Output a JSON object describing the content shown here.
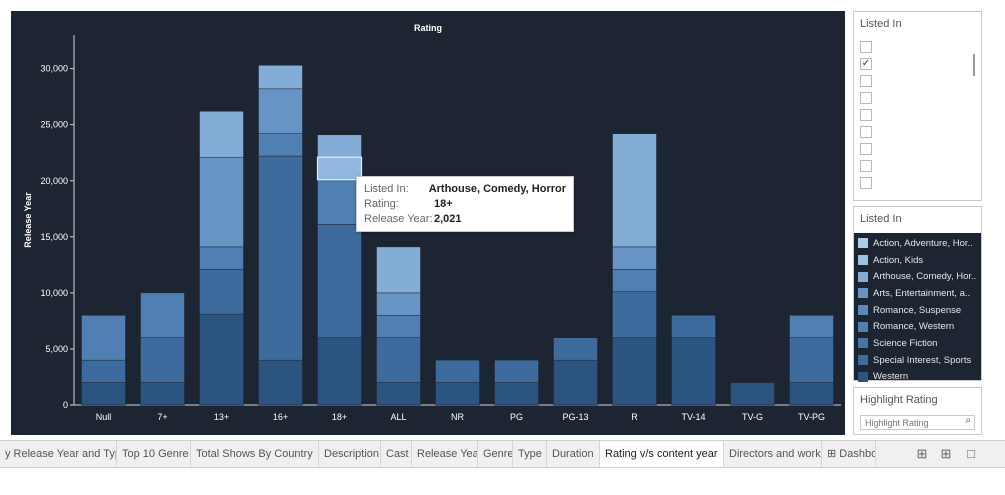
{
  "chart_data": {
    "type": "bar",
    "stacked": true,
    "title": "Rating",
    "xlabel": "",
    "ylabel": "Release Year",
    "ylim": [
      0,
      33000
    ],
    "yticks": [
      0,
      5000,
      10000,
      15000,
      20000,
      25000,
      30000
    ],
    "ytick_labels": [
      "0",
      "5,000",
      "10,000",
      "15,000",
      "20,000",
      "25,000",
      "30,000"
    ],
    "categories": [
      "Null",
      "7+",
      "13+",
      "16+",
      "18+",
      "ALL",
      "NR",
      "PG",
      "PG-13",
      "R",
      "TV-14",
      "TV-G",
      "TV-PG"
    ],
    "segments": [
      [
        2000,
        2000,
        4000
      ],
      [
        2000,
        4000,
        4000
      ],
      [
        8100,
        4000,
        2000,
        8000,
        4100
      ],
      [
        4000,
        18200,
        2000,
        4000,
        2100
      ],
      [
        6000,
        10100,
        4000,
        2000,
        2000
      ],
      [
        2000,
        4000,
        2000,
        2000,
        4100
      ],
      [
        2000,
        2000
      ],
      [
        2000,
        2000
      ],
      [
        4000,
        2000
      ],
      [
        6000,
        4100,
        2000,
        2000,
        10100
      ],
      [
        6000,
        2000
      ],
      [
        2000
      ],
      [
        2000,
        4000,
        2000
      ]
    ],
    "colors": [
      "#2b5480",
      "#3d6b9e",
      "#4f7fb3",
      "#6794c4",
      "#83acd6",
      "#a9cde9"
    ],
    "legend_position": "right"
  },
  "filter_panel": {
    "title": "Listed In",
    "checked": [
      false,
      true,
      false,
      false,
      false,
      false,
      false,
      false,
      false
    ]
  },
  "legend": {
    "title": "Listed In",
    "items": [
      {
        "label": "Action, Adventure, Hor..",
        "color": "#a9cde9"
      },
      {
        "label": "Action, Kids",
        "color": "#9ac3e4"
      },
      {
        "label": "Arthouse, Comedy, Hor..",
        "color": "#83acd6"
      },
      {
        "label": "Arts, Entertainment, a..",
        "color": "#6794c4"
      },
      {
        "label": "Romance, Suspense",
        "color": "#5b89bc"
      },
      {
        "label": "Romance, Western",
        "color": "#4f7fb3"
      },
      {
        "label": "Science Fiction",
        "color": "#4674a8"
      },
      {
        "label": "Special Interest, Sports",
        "color": "#3d6b9e"
      },
      {
        "label": "Western",
        "color": "#2b5480"
      }
    ]
  },
  "highlight": {
    "title": "Highlight Rating",
    "placeholder": "Highlight Rating",
    "search_icon": "search-icon"
  },
  "tooltip": {
    "rows": [
      {
        "key": "Listed In:",
        "value": "Arthouse, Comedy, Horror"
      },
      {
        "key": "Rating:",
        "value": "18+"
      },
      {
        "key": "Release Year:",
        "value": "2,021"
      }
    ],
    "bar_index": 4,
    "segment_range": [
      20100,
      22100
    ]
  },
  "tabs": [
    {
      "label": "y Release Year and Type",
      "active": false
    },
    {
      "label": "Top 10 Genre",
      "active": false
    },
    {
      "label": "Total Shows By Country",
      "active": false
    },
    {
      "label": "Description",
      "active": false
    },
    {
      "label": "Cast",
      "active": false
    },
    {
      "label": "Release Year",
      "active": false
    },
    {
      "label": "Genre",
      "active": false
    },
    {
      "label": "Type",
      "active": false
    },
    {
      "label": "Duration",
      "active": false
    },
    {
      "label": "Rating v/s content year",
      "active": true
    },
    {
      "label": "Directors and work",
      "active": false
    },
    {
      "label": "⊞ Dashbo",
      "active": false
    }
  ],
  "tab_icons": [
    "new-sheet-icon",
    "new-dashboard-icon",
    "new-story-icon"
  ]
}
